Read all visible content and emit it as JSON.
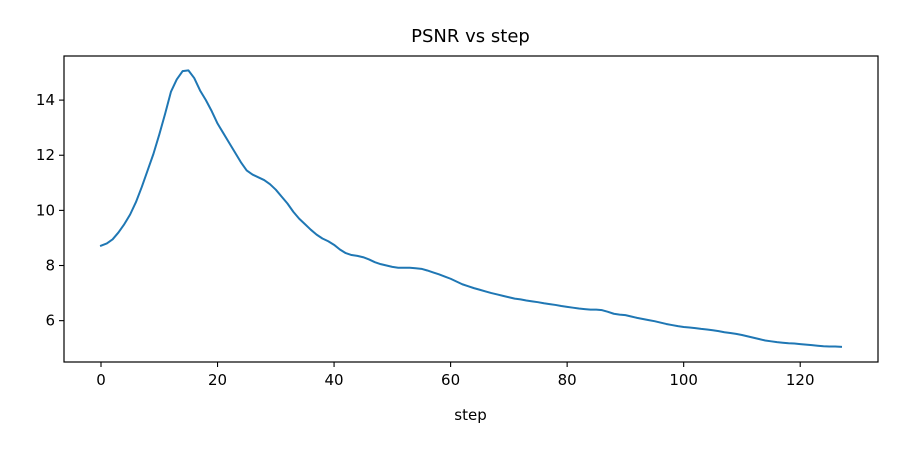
{
  "chart_data": {
    "type": "line",
    "title": "PSNR vs step",
    "xlabel": "step",
    "ylabel": "",
    "xlim": [
      -6.35,
      133.35
    ],
    "ylim": [
      4.5,
      15.6
    ],
    "xticks": [
      0,
      20,
      40,
      60,
      80,
      100,
      120
    ],
    "yticks": [
      6,
      8,
      10,
      12,
      14
    ],
    "grid": false,
    "line_color": "#1f77b4",
    "series": [
      {
        "x": [
          0,
          1,
          2,
          3,
          4,
          5,
          6,
          7,
          8,
          9,
          10,
          11,
          12,
          13,
          14,
          15,
          16,
          17,
          18,
          19,
          20,
          21,
          22,
          23,
          24,
          25,
          26,
          27,
          28,
          29,
          30,
          31,
          32,
          33,
          34,
          35,
          36,
          37,
          38,
          39,
          40,
          41,
          42,
          43,
          44,
          45,
          46,
          47,
          48,
          49,
          50,
          51,
          52,
          53,
          54,
          55,
          56,
          57,
          58,
          59,
          60,
          61,
          62,
          63,
          64,
          65,
          66,
          67,
          68,
          69,
          70,
          71,
          72,
          73,
          74,
          75,
          76,
          77,
          78,
          79,
          80,
          81,
          82,
          83,
          84,
          85,
          86,
          87,
          88,
          89,
          90,
          91,
          92,
          93,
          94,
          95,
          96,
          97,
          98,
          99,
          100,
          101,
          102,
          103,
          104,
          105,
          106,
          107,
          108,
          109,
          110,
          111,
          112,
          113,
          114,
          115,
          116,
          117,
          118,
          119,
          120,
          121,
          122,
          123,
          124,
          125,
          126,
          127
        ],
        "y": [
          8.72,
          8.8,
          8.95,
          9.2,
          9.5,
          9.85,
          10.3,
          10.85,
          11.45,
          12.05,
          12.75,
          13.5,
          14.3,
          14.75,
          15.05,
          15.08,
          14.8,
          14.35,
          14.0,
          13.6,
          13.15,
          12.8,
          12.45,
          12.1,
          11.75,
          11.45,
          11.3,
          11.2,
          11.1,
          10.95,
          10.75,
          10.5,
          10.25,
          9.95,
          9.7,
          9.5,
          9.3,
          9.12,
          8.98,
          8.88,
          8.75,
          8.58,
          8.45,
          8.38,
          8.35,
          8.3,
          8.22,
          8.12,
          8.05,
          8.0,
          7.95,
          7.92,
          7.92,
          7.92,
          7.9,
          7.88,
          7.82,
          7.75,
          7.68,
          7.6,
          7.52,
          7.42,
          7.32,
          7.25,
          7.18,
          7.12,
          7.06,
          7.0,
          6.95,
          6.9,
          6.85,
          6.8,
          6.77,
          6.73,
          6.7,
          6.67,
          6.63,
          6.6,
          6.57,
          6.53,
          6.5,
          6.47,
          6.44,
          6.42,
          6.4,
          6.4,
          6.38,
          6.32,
          6.25,
          6.22,
          6.2,
          6.15,
          6.1,
          6.06,
          6.02,
          5.98,
          5.93,
          5.88,
          5.84,
          5.8,
          5.77,
          5.75,
          5.73,
          5.7,
          5.68,
          5.65,
          5.62,
          5.58,
          5.55,
          5.52,
          5.48,
          5.43,
          5.38,
          5.33,
          5.28,
          5.25,
          5.22,
          5.2,
          5.18,
          5.17,
          5.15,
          5.13,
          5.11,
          5.09,
          5.07,
          5.06,
          5.06,
          5.05
        ]
      }
    ]
  }
}
